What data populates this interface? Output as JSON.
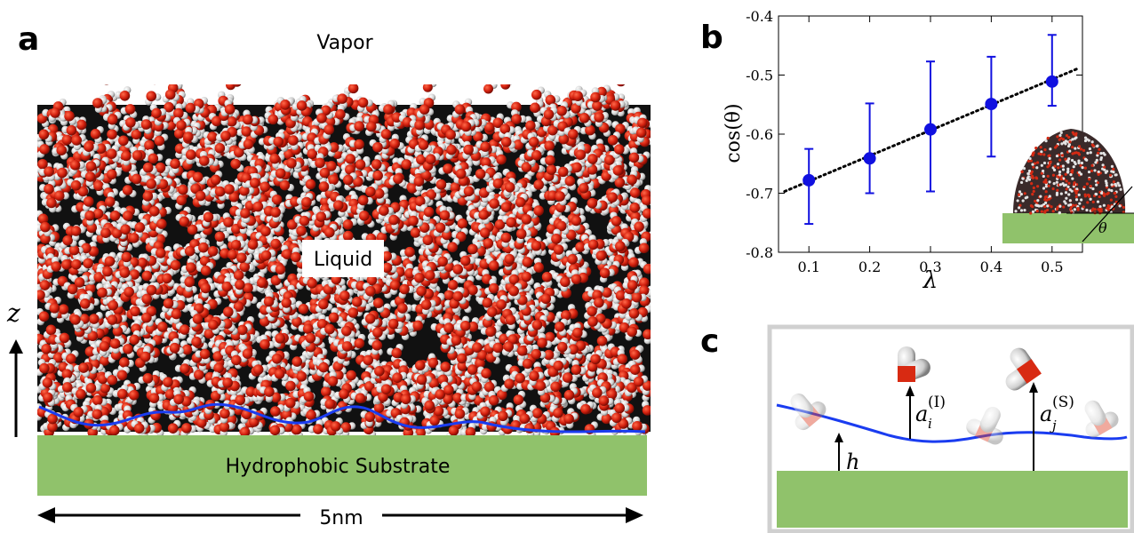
{
  "panel_a": {
    "letter": "a",
    "vapor_label": "Vapor",
    "liquid_label": "Liquid",
    "substrate_label": "Hydrophobic Substrate",
    "scale_label": "5nm",
    "z_axis_label": "z",
    "colors": {
      "substrate": "#90c26b",
      "interface": "#1a3cf0",
      "oxygen": "#dd2a12",
      "hydrogen": "#e8e8e8"
    }
  },
  "panel_b": {
    "letter": "b",
    "inset_angle_label": "θ"
  },
  "panel_c": {
    "letter": "c",
    "h_label": "h",
    "ai_label": "a",
    "ai_sub": "i",
    "ai_sup": "(I)",
    "aj_label": "a",
    "aj_sub": "j",
    "aj_sup": "(S)"
  },
  "chart_data": {
    "type": "scatter",
    "xlabel": "λ",
    "ylabel": "cos(θ)",
    "x": [
      0.1,
      0.2,
      0.3,
      0.4,
      0.5
    ],
    "y": [
      -0.678,
      -0.641,
      -0.592,
      -0.549,
      -0.511
    ],
    "yerr_low": [
      -0.752,
      -0.7,
      -0.697,
      -0.638,
      -0.552
    ],
    "yerr_high": [
      -0.625,
      -0.548,
      -0.477,
      -0.469,
      -0.432
    ],
    "fit_line": {
      "x": [
        0.06,
        0.54
      ],
      "y": [
        -0.697,
        -0.49
      ]
    },
    "xticks": [
      "0.1",
      "0.2",
      "0.3",
      "0.4",
      "0.5"
    ],
    "yticks": [
      "-0.8",
      "-0.7",
      "-0.6",
      "-0.5",
      "-0.4"
    ],
    "xlim": [
      0.05,
      0.55
    ],
    "ylim": [
      -0.8,
      -0.4
    ],
    "grid": false,
    "marker_color": "#1010e0"
  }
}
